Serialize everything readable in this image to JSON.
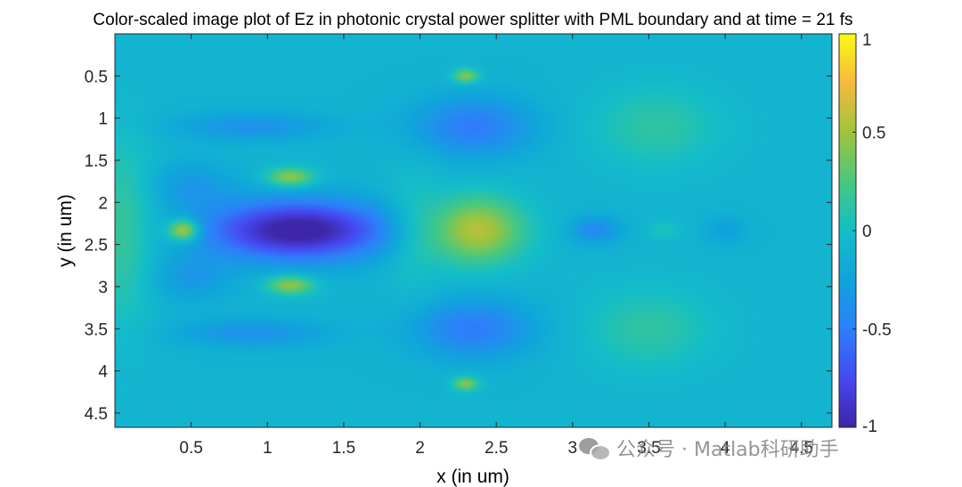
{
  "chart_data": {
    "type": "heatmap",
    "title": "Color-scaled image plot of Ez in photonic crystal power splitter with PML boundary and at time = 21 fs",
    "xlabel": "x (in um)",
    "ylabel": "y (in um)",
    "xlim": [
      0,
      4.7
    ],
    "ylim": [
      0,
      4.67
    ],
    "y_reversed": true,
    "x_ticks": [
      "0.5",
      "1",
      "1.5",
      "2",
      "2.5",
      "3",
      "3.5",
      "4",
      "4.5"
    ],
    "y_ticks": [
      "0.5",
      "1",
      "1.5",
      "2",
      "2.5",
      "3",
      "3.5",
      "4",
      "4.5"
    ],
    "colormap": "parula",
    "clim": [
      -1,
      1
    ],
    "colorbar_ticks": [
      "1",
      "0.5",
      "0",
      "-0.5",
      "-1"
    ],
    "background_value": -0.1,
    "features": [
      {
        "x": 1.2,
        "y": 2.33,
        "value": -1.0,
        "sx": 0.42,
        "sy": 0.25
      },
      {
        "x": 0.45,
        "y": 2.33,
        "value": 0.75,
        "sx": 0.07,
        "sy": 0.09
      },
      {
        "x": 2.37,
        "y": 2.33,
        "value": 0.65,
        "sx": 0.22,
        "sy": 0.28
      },
      {
        "x": 1.15,
        "y": 1.7,
        "value": 0.55,
        "sx": 0.11,
        "sy": 0.08
      },
      {
        "x": 1.15,
        "y": 2.98,
        "value": 0.55,
        "sx": 0.11,
        "sy": 0.08
      },
      {
        "x": 2.35,
        "y": 1.1,
        "value": -0.45,
        "sx": 0.28,
        "sy": 0.25
      },
      {
        "x": 2.35,
        "y": 3.5,
        "value": -0.45,
        "sx": 0.28,
        "sy": 0.25
      },
      {
        "x": 0.9,
        "y": 1.1,
        "value": -0.3,
        "sx": 0.35,
        "sy": 0.12
      },
      {
        "x": 0.9,
        "y": 3.55,
        "value": -0.3,
        "sx": 0.35,
        "sy": 0.12
      },
      {
        "x": 3.15,
        "y": 2.33,
        "value": -0.35,
        "sx": 0.12,
        "sy": 0.12
      },
      {
        "x": 3.55,
        "y": 1.1,
        "value": 0.2,
        "sx": 0.3,
        "sy": 0.35
      },
      {
        "x": 3.5,
        "y": 3.5,
        "value": 0.2,
        "sx": 0.3,
        "sy": 0.35
      },
      {
        "x": 3.6,
        "y": 2.33,
        "value": 0.12,
        "sx": 0.08,
        "sy": 0.08
      },
      {
        "x": 4.0,
        "y": 2.33,
        "value": -0.2,
        "sx": 0.1,
        "sy": 0.12
      },
      {
        "x": 2.3,
        "y": 0.5,
        "value": 0.5,
        "sx": 0.06,
        "sy": 0.06
      },
      {
        "x": 2.3,
        "y": 4.15,
        "value": 0.5,
        "sx": 0.06,
        "sy": 0.06
      },
      {
        "x": 0.05,
        "y": 1.9,
        "value": 0.15,
        "sx": 0.15,
        "sy": 0.6
      },
      {
        "x": 0.05,
        "y": 2.8,
        "value": 0.15,
        "sx": 0.15,
        "sy": 0.6
      },
      {
        "x": 1.95,
        "y": 2.33,
        "value": 0.15,
        "sx": 0.12,
        "sy": 0.5
      },
      {
        "x": 0.5,
        "y": 1.8,
        "value": -0.25,
        "sx": 0.2,
        "sy": 0.2
      },
      {
        "x": 0.5,
        "y": 2.9,
        "value": -0.25,
        "sx": 0.2,
        "sy": 0.2
      }
    ]
  },
  "watermark": {
    "text": "公众号 · Matlab科研助手"
  }
}
